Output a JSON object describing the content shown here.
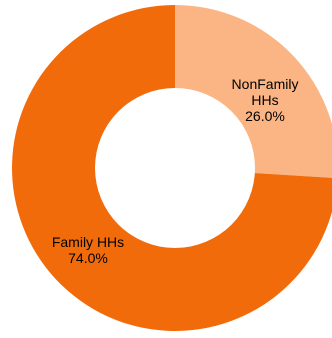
{
  "chart_data": {
    "type": "pie",
    "variant": "donut",
    "title": "",
    "slices": [
      {
        "name": "NonFamily HHs",
        "label_lines": [
          "NonFamily",
          "HHs"
        ],
        "value": 26.0,
        "value_label": "26.0%",
        "color": "#fbb584"
      },
      {
        "name": "Family HHs",
        "label_lines": [
          "Family HHs"
        ],
        "value": 74.0,
        "value_label": "74.0%",
        "color": "#f26b0b"
      }
    ],
    "start_angle": "12 o'clock",
    "direction": "clockwise",
    "legend": "none"
  }
}
